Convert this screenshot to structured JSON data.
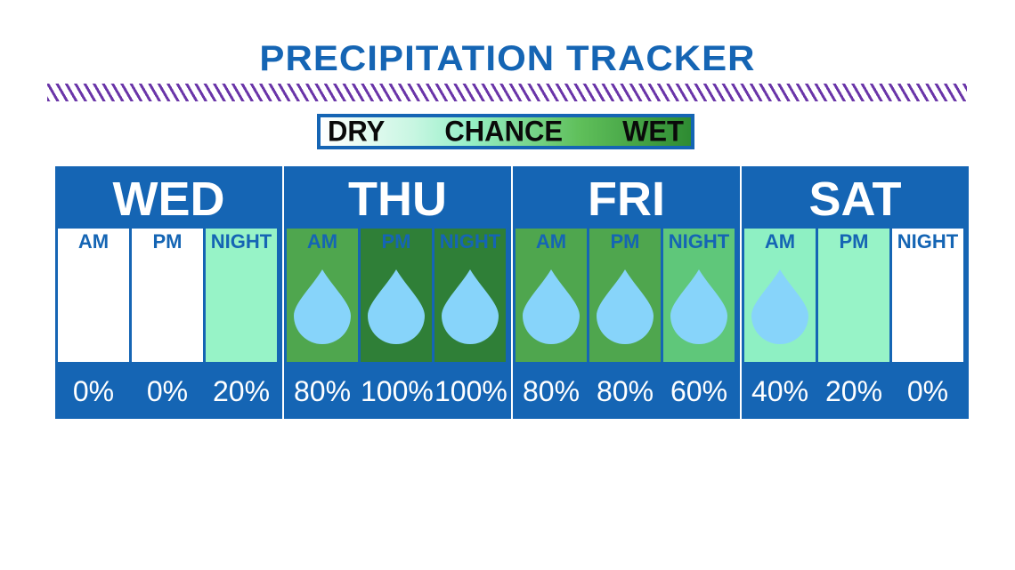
{
  "title": "PRECIPITATION TRACKER",
  "legend": {
    "dry": "DRY",
    "chance": "CHANCE",
    "wet": "WET"
  },
  "colors": {
    "frame": "#1565b4",
    "stripes": "#6a35a8",
    "level_0": "#ffffff",
    "level_20": "#97f3c7",
    "level_40": "#8ef0c3",
    "level_60": "#5fc77a",
    "level_80": "#4fa64e",
    "level_100": "#2f7f37",
    "drop": "#87d4fa"
  },
  "days": [
    {
      "name": "WED",
      "periods": [
        {
          "label": "AM",
          "percent": "0%",
          "value": 0,
          "drop": false
        },
        {
          "label": "PM",
          "percent": "0%",
          "value": 0,
          "drop": false
        },
        {
          "label": "NIGHT",
          "percent": "20%",
          "value": 20,
          "drop": false
        }
      ]
    },
    {
      "name": "THU",
      "periods": [
        {
          "label": "AM",
          "percent": "80%",
          "value": 80,
          "drop": true
        },
        {
          "label": "PM",
          "percent": "100%",
          "value": 100,
          "drop": true
        },
        {
          "label": "NIGHT",
          "percent": "100%",
          "value": 100,
          "drop": true
        }
      ]
    },
    {
      "name": "FRI",
      "periods": [
        {
          "label": "AM",
          "percent": "80%",
          "value": 80,
          "drop": true
        },
        {
          "label": "PM",
          "percent": "80%",
          "value": 80,
          "drop": true
        },
        {
          "label": "NIGHT",
          "percent": "60%",
          "value": 60,
          "drop": true
        }
      ]
    },
    {
      "name": "SAT",
      "periods": [
        {
          "label": "AM",
          "percent": "40%",
          "value": 40,
          "drop": true
        },
        {
          "label": "PM",
          "percent": "20%",
          "value": 20,
          "drop": false
        },
        {
          "label": "NIGHT",
          "percent": "0%",
          "value": 0,
          "drop": false
        }
      ]
    }
  ]
}
